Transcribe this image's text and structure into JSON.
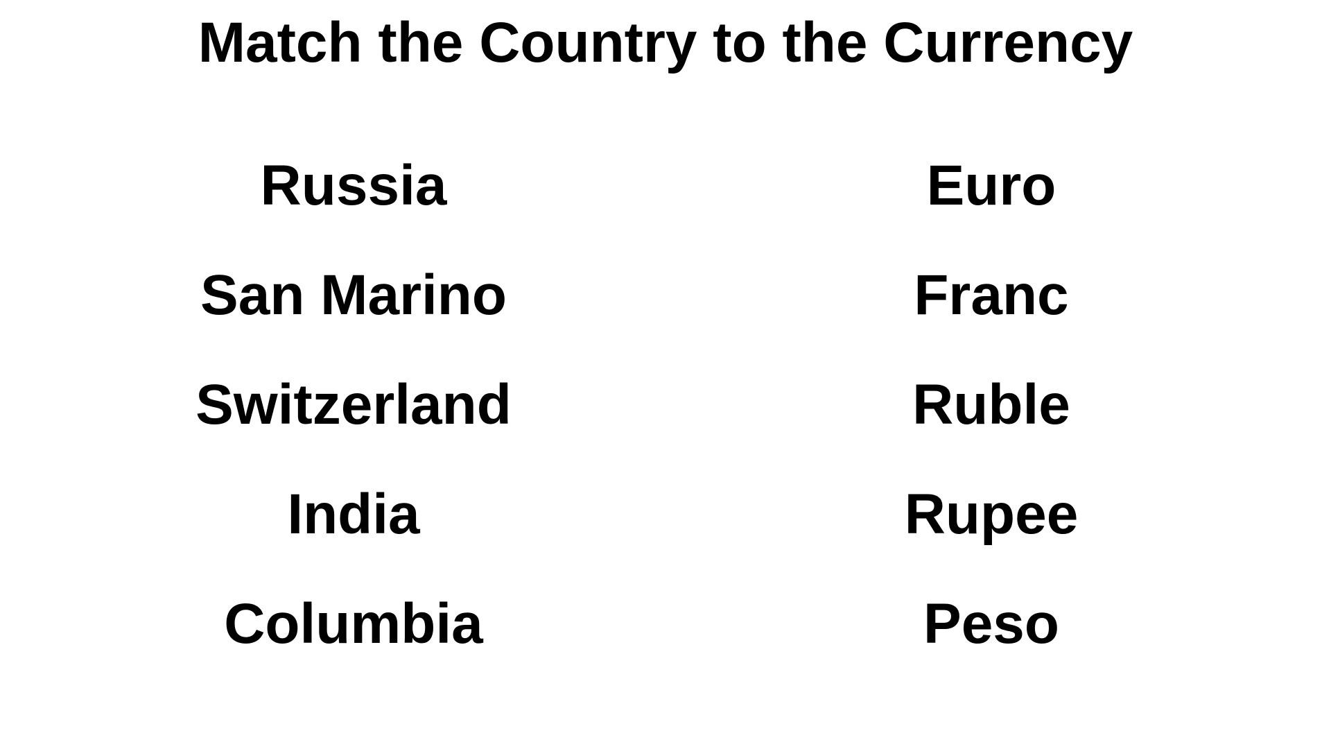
{
  "title": "Match the Country to the Currency",
  "countries": [
    "Russia",
    "San Marino",
    "Switzerland",
    "India",
    "Columbia"
  ],
  "currencies": [
    "Euro",
    "Franc",
    "Ruble",
    "Rupee",
    "Peso"
  ]
}
